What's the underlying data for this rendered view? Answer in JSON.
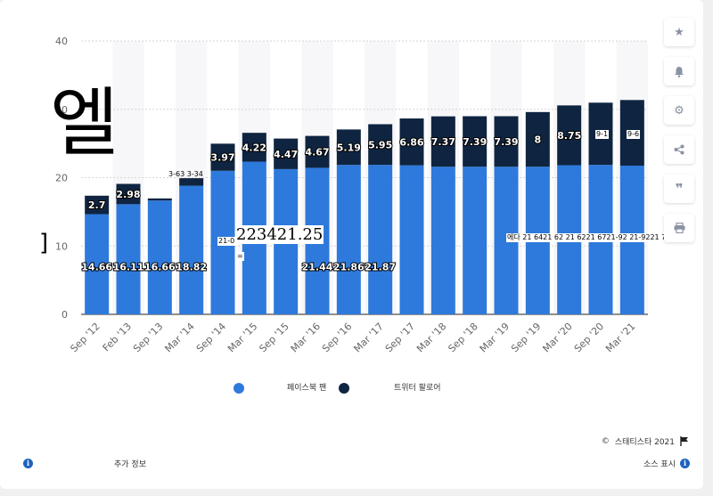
{
  "chart_data": {
    "type": "bar",
    "stacked": true,
    "categories": [
      "Sep '12",
      "Feb '13",
      "Sep '13",
      "Mar '14",
      "Sep '14",
      "Mar '15",
      "Sep '15",
      "Mar '16",
      "Sep '16",
      "Mar '17",
      "Sep '17",
      "Mar '18",
      "Sep '18",
      "Mar '19",
      "Sep '19",
      "Mar '20",
      "Sep '20",
      "Mar '21"
    ],
    "tick_labels": [
      "Sep '12",
      "Feb '13",
      "Sep '13",
      "Mar '14",
      "Sep '14",
      "Mar '15",
      "Sep '15",
      "Mar '16",
      "Sep '16",
      "Mar '17",
      "Sep '17",
      "Mar '18",
      "Sep '18",
      "Mar '19",
      "Sep '19",
      "Mar '20",
      "Sep '20",
      "Mar '21"
    ],
    "series": [
      {
        "name": "페이스북 팬",
        "color": "#2e79dc",
        "values": [
          14.66,
          16.11,
          16.66,
          18.82,
          21.0,
          22.34,
          21.25,
          21.44,
          21.86,
          21.87,
          21.8,
          21.6,
          21.6,
          21.6,
          21.6,
          21.82,
          21.87,
          21.76
        ],
        "labels": [
          "14.66",
          "16.11",
          "16.66",
          "18.82",
          "",
          "",
          "",
          "21.44",
          "21.86",
          "21.87",
          "",
          "",
          "",
          "",
          "",
          "",
          "",
          ""
        ]
      },
      {
        "name": "트위터 팔로어",
        "color": "#0f2440",
        "values": [
          2.7,
          2.98,
          0.3,
          1.1,
          3.97,
          4.22,
          4.47,
          4.67,
          5.19,
          5.95,
          6.86,
          7.37,
          7.39,
          7.39,
          8,
          8.75,
          9.1,
          9.6
        ],
        "labels": [
          "2.7",
          "2.98",
          "",
          "",
          "3.97",
          "4.22",
          "4.47",
          "4.67",
          "5.19",
          "5.95",
          "6.86",
          "7.37",
          "7.39",
          "7.39",
          "8",
          "8.75",
          "",
          ""
        ]
      }
    ],
    "ylim": [
      0,
      40
    ],
    "yticks": [
      0,
      10,
      20,
      30,
      40
    ],
    "grid": true,
    "legend_position": "bottom"
  },
  "legend": {
    "fb": "페이스북 팬",
    "tw": "트위터 팔로어"
  },
  "credit": "스태티스타 2021",
  "footer": {
    "more_info": "추가 정보",
    "show_source": "소스 표시"
  },
  "overlay": {
    "watermark": "엘",
    "bracket": "]",
    "big_number": "223421.25",
    "prefix": "21-0",
    "eq": "=",
    "lbl_3": "3-63 3-34",
    "lbl_row": "에다 21 6421 62  21 6221  6721-92  21-9221 76",
    "lbl_box1": "9-1",
    "lbl_box2": "9-6",
    "sep_marks": [
      "S88",
      "S88",
      "S88",
      "S88"
    ],
    "sep_positions_note": ""
  },
  "sidebar_icons": [
    "star-icon",
    "bell-icon",
    "gear-icon",
    "share-icon",
    "quote-icon",
    "print-icon"
  ]
}
